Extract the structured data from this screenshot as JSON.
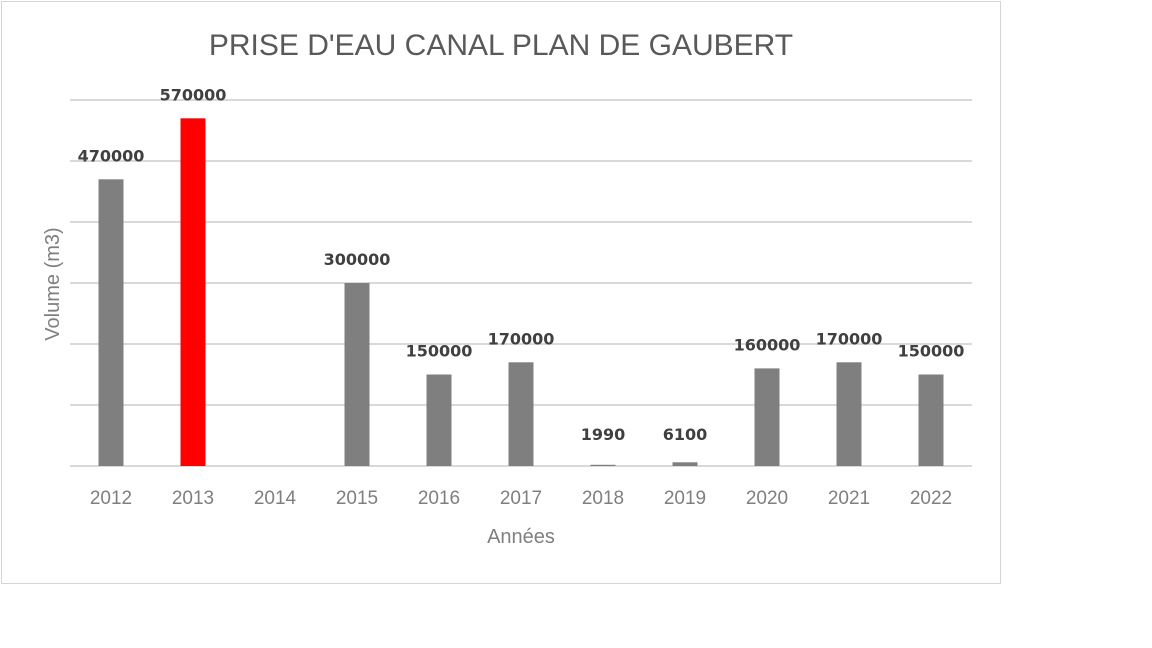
{
  "chart_data": {
    "type": "bar",
    "title": "PRISE D'EAU CANAL PLAN DE GAUBERT",
    "xlabel": "Années",
    "ylabel": "Volume (m3)",
    "categories": [
      "2012",
      "2013",
      "2014",
      "2015",
      "2016",
      "2017",
      "2018",
      "2019",
      "2020",
      "2021",
      "2022"
    ],
    "values": [
      470000,
      570000,
      null,
      300000,
      150000,
      170000,
      1990,
      6100,
      160000,
      170000,
      150000
    ],
    "data_labels": [
      "470000",
      "570000",
      "",
      "300000",
      "150000",
      "170000",
      "1990",
      "6100",
      "160000",
      "170000",
      "150000"
    ],
    "ylim": [
      0,
      600000
    ],
    "y_gridline_step": 100000,
    "y_tick_labels_shown": false,
    "grid": true,
    "legend": "none",
    "colors": {
      "default_bar": "#7f7f7f",
      "highlight_bar": "#ff0000",
      "highlight_category": "2013"
    }
  }
}
